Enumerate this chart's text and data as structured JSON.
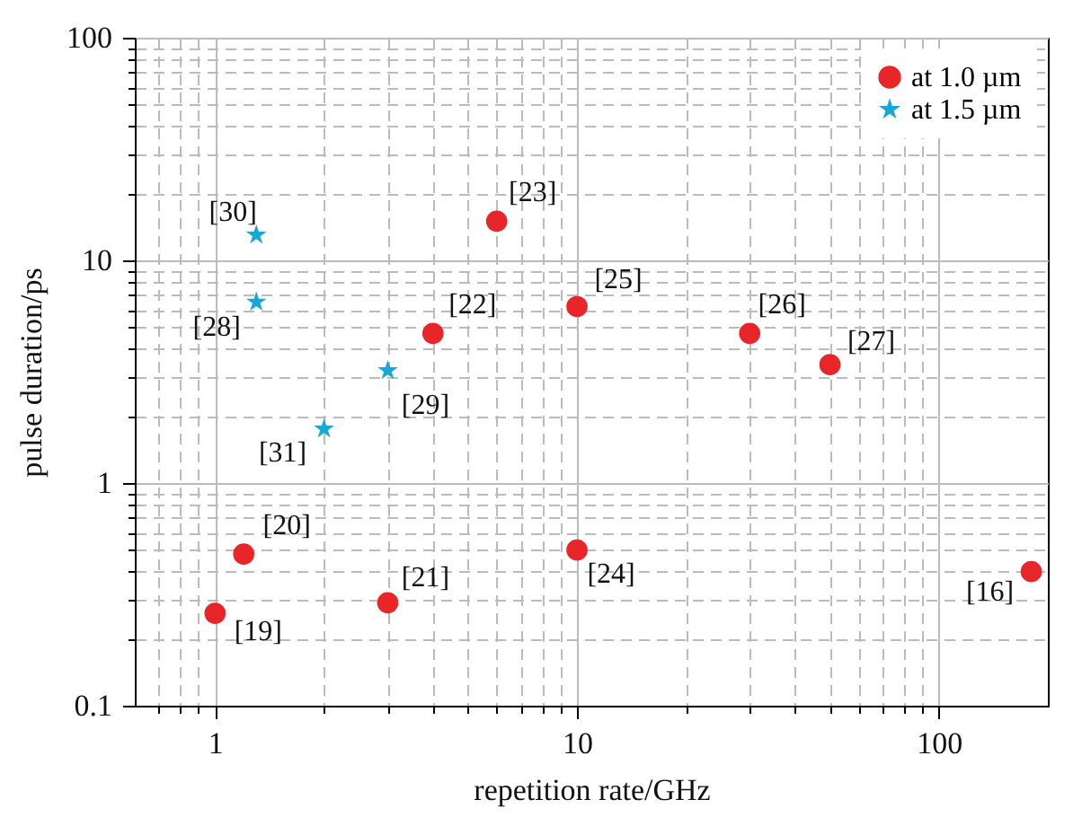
{
  "chart_data": {
    "type": "scatter",
    "xlabel": "repetition rate/GHz",
    "ylabel": "pulse duration/ps",
    "log": "xy",
    "grid": true,
    "legend": "top right",
    "xlim": [
      0.6,
      200
    ],
    "ylim": [
      0.1,
      100
    ],
    "xticks": [
      {
        "value": 0.7,
        "label": null
      },
      {
        "value": 0.8,
        "label": null
      },
      {
        "value": 0.9,
        "label": null
      },
      1,
      {
        "value": 2,
        "label": null
      },
      {
        "value": 3,
        "label": null
      },
      {
        "value": 4,
        "label": null
      },
      {
        "value": 5,
        "label": null
      },
      {
        "value": 6,
        "label": null
      },
      {
        "value": 7,
        "label": null
      },
      {
        "value": 8,
        "label": null
      },
      {
        "value": 9,
        "label": null
      },
      10,
      {
        "value": 20,
        "label": null
      },
      {
        "value": 30,
        "label": null
      },
      {
        "value": 40,
        "label": null
      },
      {
        "value": 50,
        "label": null
      },
      {
        "value": 60,
        "label": null
      },
      {
        "value": 70,
        "label": null
      },
      {
        "value": 80,
        "label": null
      },
      {
        "value": 90,
        "label": null
      },
      100
    ],
    "yticks": [
      0.1,
      {
        "value": 0.2,
        "label": null
      },
      {
        "value": 0.3,
        "label": null
      },
      {
        "value": 0.4,
        "label": null
      },
      {
        "value": 0.5,
        "label": null
      },
      {
        "value": 0.6,
        "label": null
      },
      {
        "value": 0.7,
        "label": null
      },
      {
        "value": 0.8,
        "label": null
      },
      {
        "value": 0.9,
        "label": null
      },
      1,
      {
        "value": 2,
        "label": null
      },
      {
        "value": 3,
        "label": null
      },
      {
        "value": 4,
        "label": null
      },
      {
        "value": 5,
        "label": null
      },
      {
        "value": 6,
        "label": null
      },
      {
        "value": 7,
        "label": null
      },
      {
        "value": 8,
        "label": null
      },
      {
        "value": 9,
        "label": null
      },
      10,
      {
        "value": 20,
        "label": null
      },
      {
        "value": 30,
        "label": null
      },
      {
        "value": 40,
        "label": null
      },
      {
        "value": 50,
        "label": null
      },
      {
        "value": 60,
        "label": null
      },
      {
        "value": 70,
        "label": null
      },
      {
        "value": 80,
        "label": null
      },
      {
        "value": 90,
        "label": null
      },
      100
    ],
    "series": [
      {
        "name": "at 1.0 µm",
        "color": "#e8262a",
        "marker": "circle",
        "x": [
          1,
          1.2,
          3,
          4,
          6,
          10,
          10,
          30,
          50,
          180
        ],
        "values": [
          0.26,
          0.48,
          0.29,
          4.7,
          15,
          0.5,
          6.2,
          4.7,
          3.4,
          0.4
        ]
      },
      {
        "name": "at 1.5 µm",
        "color": "#1aa6d6",
        "marker": "star",
        "x": [
          1.3,
          1.3,
          2,
          3
        ],
        "values": [
          13,
          6.5,
          1.75,
          3.2
        ]
      }
    ],
    "annotations": [
      {
        "text": "[19]",
        "x": 1,
        "y": 0.26
      },
      {
        "text": "[20]",
        "x": 1.2,
        "y": 0.48
      },
      {
        "text": "[21]",
        "x": 3,
        "y": 0.29
      },
      {
        "text": "[22]",
        "x": 4,
        "y": 4.7
      },
      {
        "text": "[23]",
        "x": 6,
        "y": 15
      },
      {
        "text": "[24]",
        "x": 10,
        "y": 0.5
      },
      {
        "text": "[25]",
        "x": 10,
        "y": 6.2
      },
      {
        "text": "[26]",
        "x": 30,
        "y": 4.7
      },
      {
        "text": "[27]",
        "x": 50,
        "y": 3.4
      },
      {
        "text": "[16]",
        "x": 180,
        "y": 0.4
      },
      {
        "text": "[30]",
        "x": 1.3,
        "y": 13
      },
      {
        "text": "[28]",
        "x": 1.3,
        "y": 6.5
      },
      {
        "text": "[31]",
        "x": 2,
        "y": 1.75
      },
      {
        "text": "[29]",
        "x": 3,
        "y": 3.2
      }
    ]
  }
}
